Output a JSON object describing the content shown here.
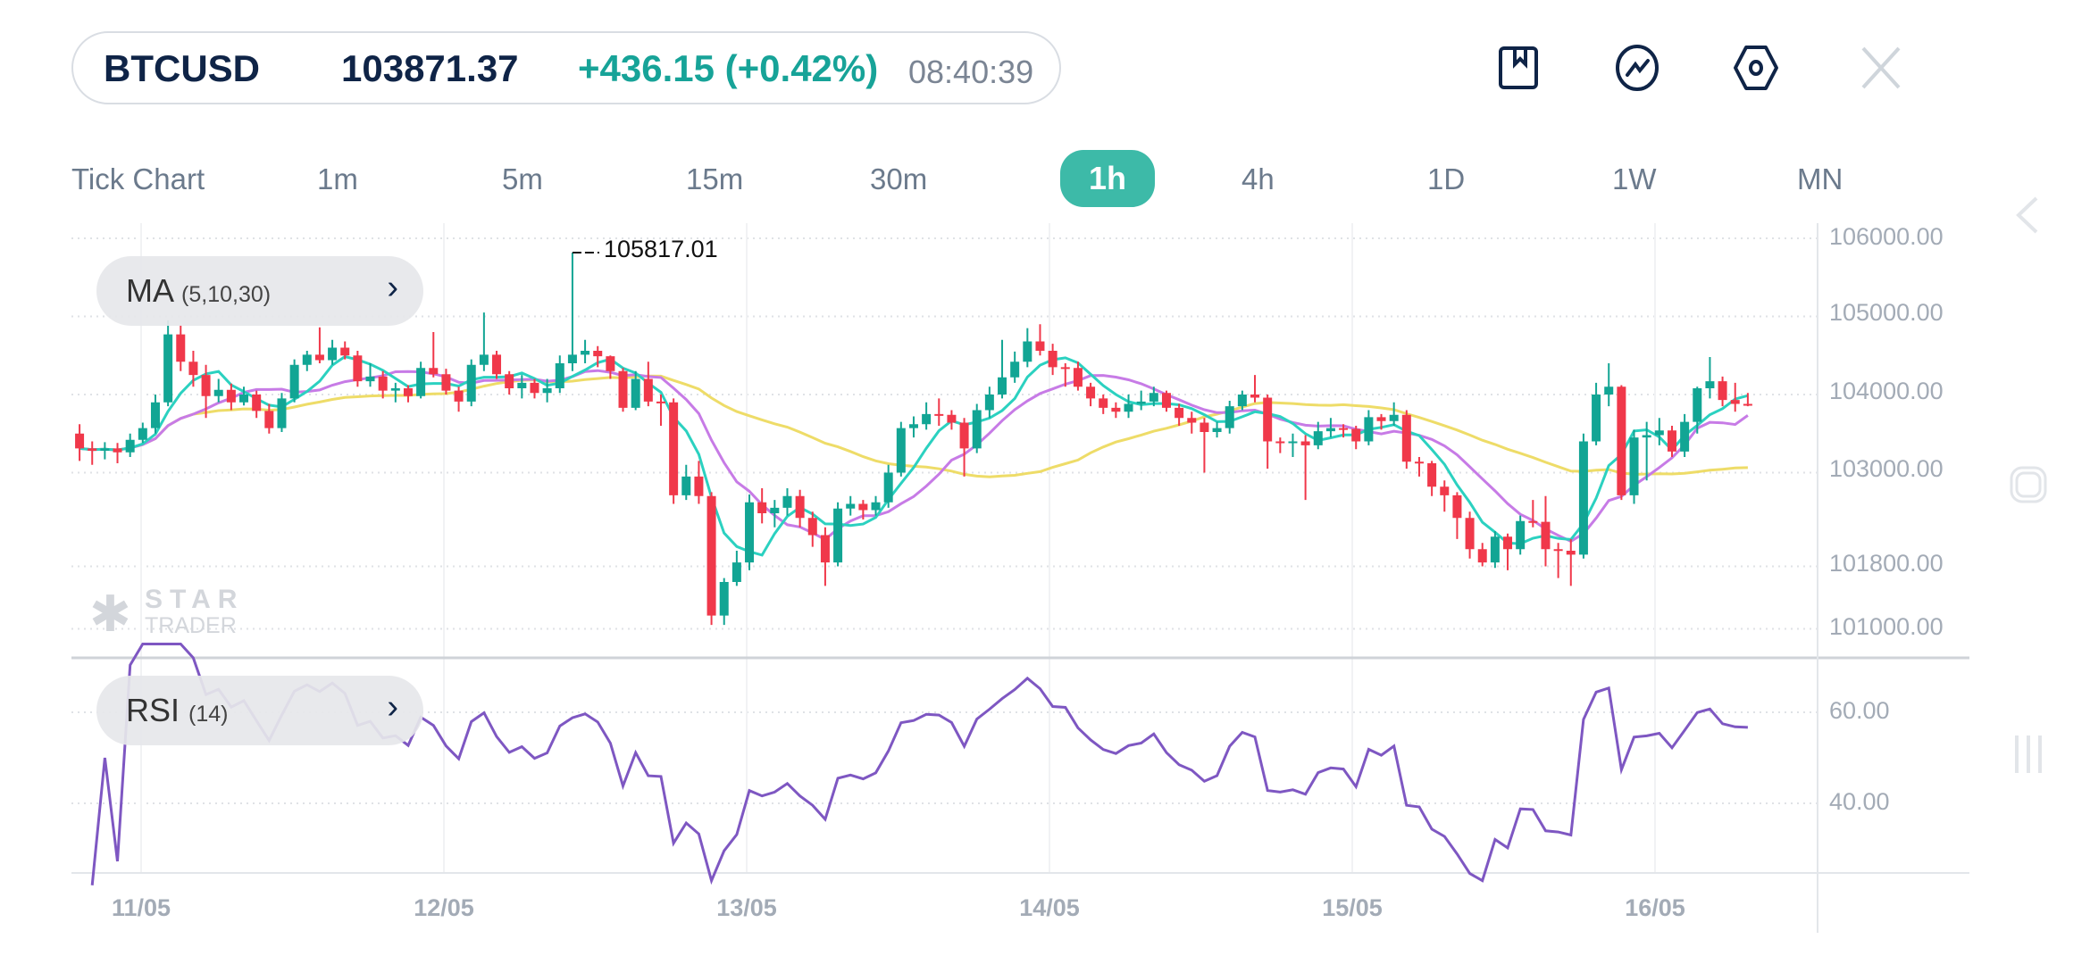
{
  "header": {
    "symbol": "BTCUSD",
    "price": "103871.37",
    "change": "+436.15 (+0.42%)",
    "time": "08:40:39",
    "icons": [
      "bookmark-icon",
      "indicator-chart-icon",
      "settings-hexagon-icon",
      "close-icon"
    ]
  },
  "timeframes": [
    {
      "label": "Tick Chart"
    },
    {
      "label": "1m"
    },
    {
      "label": "5m"
    },
    {
      "label": "15m"
    },
    {
      "label": "30m"
    },
    {
      "label": "1h",
      "active": true
    },
    {
      "label": "4h"
    },
    {
      "label": "1D"
    },
    {
      "label": "1W"
    },
    {
      "label": "MN"
    }
  ],
  "indicators": {
    "ma": {
      "name": "MA",
      "params": "(5,10,30)",
      "periods": [
        5,
        10,
        30
      ]
    },
    "rsi": {
      "name": "RSI",
      "params": "(14)",
      "period": 14
    }
  },
  "watermark": {
    "line1": "STAR",
    "line2": "TRADER"
  },
  "colors": {
    "up": "#12a594",
    "down": "#f0384a",
    "ma5": "#2bd1c0",
    "ma10": "#c77be6",
    "ma30": "#eedc68",
    "rsi": "#7e57c2",
    "accent": "#3dbaa8"
  },
  "chart_data": [
    {
      "type": "candlestick",
      "title": "",
      "price_axis_labels": [
        "106000.00",
        "105000.00",
        "104000.00",
        "103000.00",
        "101800.00",
        "101000.00"
      ],
      "price_axis_values": [
        106000,
        105000,
        104000,
        103000,
        101800,
        101000
      ],
      "ylim": [
        100900,
        106100
      ],
      "x_tick_labels": [
        "11/05",
        "12/05",
        "13/05",
        "14/05",
        "15/05",
        "16/05"
      ],
      "peak_label": "105817.01",
      "grid": true,
      "candles_ohlc": [
        [
          103500,
          103620,
          103150,
          103310
        ],
        [
          103310,
          103400,
          103100,
          103280
        ],
        [
          103280,
          103390,
          103170,
          103310
        ],
        [
          103310,
          103380,
          103120,
          103260
        ],
        [
          103260,
          103500,
          103200,
          103420
        ],
        [
          103420,
          103640,
          103380,
          103570
        ],
        [
          103570,
          104000,
          103500,
          103900
        ],
        [
          103900,
          104950,
          103850,
          104770
        ],
        [
          104770,
          104890,
          104300,
          104420
        ],
        [
          104420,
          104560,
          104100,
          104250
        ],
        [
          104250,
          104380,
          103700,
          103980
        ],
        [
          103980,
          104200,
          103900,
          104060
        ],
        [
          104060,
          104140,
          103800,
          103900
        ],
        [
          103900,
          104100,
          103860,
          104000
        ],
        [
          104000,
          104050,
          103700,
          103790
        ],
        [
          103790,
          103880,
          103500,
          103570
        ],
        [
          103570,
          104020,
          103520,
          103950
        ],
        [
          103950,
          104450,
          103900,
          104380
        ],
        [
          104380,
          104560,
          104300,
          104510
        ],
        [
          104510,
          104860,
          104400,
          104440
        ],
        [
          104440,
          104700,
          104380,
          104600
        ],
        [
          104600,
          104680,
          104450,
          104500
        ],
        [
          104500,
          104560,
          104100,
          104170
        ],
        [
          104170,
          104400,
          104100,
          104230
        ],
        [
          104230,
          104300,
          103950,
          104050
        ],
        [
          104050,
          104150,
          103900,
          104080
        ],
        [
          104080,
          104120,
          103900,
          103980
        ],
        [
          103980,
          104420,
          103950,
          104340
        ],
        [
          104340,
          104800,
          104220,
          104260
        ],
        [
          104260,
          104330,
          104000,
          104050
        ],
        [
          104050,
          104100,
          103780,
          103910
        ],
        [
          103910,
          104450,
          103850,
          104380
        ],
        [
          104380,
          105050,
          104300,
          104510
        ],
        [
          104510,
          104560,
          104200,
          104260
        ],
        [
          104260,
          104300,
          104000,
          104080
        ],
        [
          104080,
          104250,
          103950,
          104150
        ],
        [
          104150,
          104200,
          103950,
          104020
        ],
        [
          104020,
          104200,
          103900,
          104080
        ],
        [
          104080,
          104500,
          104020,
          104400
        ],
        [
          104400,
          105817.01,
          104300,
          104510
        ],
        [
          104510,
          104700,
          104400,
          104560
        ],
        [
          104560,
          104620,
          104350,
          104490
        ],
        [
          104490,
          104500,
          104200,
          104300
        ],
        [
          104300,
          104340,
          103780,
          103830
        ],
        [
          103830,
          104300,
          103800,
          104200
        ],
        [
          104200,
          104420,
          103850,
          103910
        ],
        [
          103910,
          104000,
          103600,
          103900
        ],
        [
          103900,
          103950,
          102600,
          102710
        ],
        [
          102710,
          103100,
          102650,
          102950
        ],
        [
          102950,
          103150,
          102600,
          102700
        ],
        [
          102700,
          102750,
          101050,
          101170
        ],
        [
          101170,
          101650,
          101050,
          101600
        ],
        [
          101600,
          102000,
          101550,
          101850
        ],
        [
          101850,
          102720,
          101750,
          102620
        ],
        [
          102620,
          102800,
          102350,
          102480
        ],
        [
          102480,
          102650,
          102300,
          102550
        ],
        [
          102550,
          102800,
          102450,
          102700
        ],
        [
          102700,
          102780,
          102300,
          102420
        ],
        [
          102420,
          102500,
          102050,
          102200
        ],
        [
          102200,
          102300,
          101550,
          101850
        ],
        [
          101850,
          102620,
          101800,
          102540
        ],
        [
          102540,
          102700,
          102450,
          102600
        ],
        [
          102600,
          102650,
          102400,
          102520
        ],
        [
          102520,
          102700,
          102450,
          102620
        ],
        [
          102620,
          103100,
          102550,
          103000
        ],
        [
          103000,
          103650,
          102950,
          103570
        ],
        [
          103570,
          103720,
          103450,
          103620
        ],
        [
          103620,
          103900,
          103550,
          103750
        ],
        [
          103750,
          103950,
          103600,
          103740
        ],
        [
          103740,
          103800,
          103550,
          103640
        ],
        [
          103640,
          103700,
          102950,
          103310
        ],
        [
          103310,
          103880,
          103250,
          103800
        ],
        [
          103800,
          104100,
          103700,
          104000
        ],
        [
          104000,
          104700,
          103950,
          104220
        ],
        [
          104220,
          104550,
          104150,
          104420
        ],
        [
          104420,
          104850,
          104350,
          104680
        ],
        [
          104680,
          104900,
          104500,
          104560
        ],
        [
          104560,
          104650,
          104250,
          104350
        ],
        [
          104350,
          104400,
          104100,
          104340
        ],
        [
          104340,
          104420,
          104050,
          104100
        ],
        [
          104100,
          104150,
          103850,
          103950
        ],
        [
          103950,
          104000,
          103750,
          103830
        ],
        [
          103830,
          103900,
          103700,
          103780
        ],
        [
          103780,
          104000,
          103700,
          103880
        ],
        [
          103880,
          104050,
          103800,
          103910
        ],
        [
          103910,
          104100,
          103850,
          104020
        ],
        [
          104020,
          104050,
          103780,
          103830
        ],
        [
          103830,
          103880,
          103600,
          103700
        ],
        [
          103700,
          103780,
          103500,
          103640
        ],
        [
          103640,
          103700,
          103000,
          103520
        ],
        [
          103520,
          103650,
          103450,
          103570
        ],
        [
          103570,
          103920,
          103500,
          103850
        ],
        [
          103850,
          104050,
          103800,
          104000
        ],
        [
          104000,
          104250,
          103900,
          103960
        ],
        [
          103960,
          104000,
          103050,
          103400
        ],
        [
          103400,
          103450,
          103250,
          103380
        ],
        [
          103380,
          103500,
          103200,
          103400
        ],
        [
          103400,
          103480,
          102650,
          103350
        ],
        [
          103350,
          103650,
          103300,
          103530
        ],
        [
          103530,
          103700,
          103450,
          103570
        ],
        [
          103570,
          103620,
          103450,
          103560
        ],
        [
          103560,
          103600,
          103300,
          103400
        ],
        [
          103400,
          103800,
          103350,
          103710
        ],
        [
          103710,
          103750,
          103550,
          103660
        ],
        [
          103660,
          103900,
          103600,
          103740
        ],
        [
          103740,
          103800,
          103050,
          103140
        ],
        [
          103140,
          103200,
          102950,
          103120
        ],
        [
          103120,
          103150,
          102700,
          102820
        ],
        [
          102820,
          102900,
          102500,
          102710
        ],
        [
          102710,
          102750,
          102150,
          102420
        ],
        [
          102420,
          102500,
          101900,
          102020
        ],
        [
          102020,
          102100,
          101800,
          101850
        ],
        [
          101850,
          102250,
          101780,
          102180
        ],
        [
          102180,
          102220,
          101750,
          102020
        ],
        [
          102020,
          102450,
          101950,
          102380
        ],
        [
          102380,
          102650,
          102300,
          102370
        ],
        [
          102370,
          102700,
          101800,
          102020
        ],
        [
          102020,
          102100,
          101650,
          102000
        ],
        [
          102000,
          102150,
          101550,
          101950
        ],
        [
          101950,
          103500,
          101900,
          103400
        ],
        [
          103400,
          104150,
          103350,
          104000
        ],
        [
          104000,
          104400,
          103850,
          104100
        ],
        [
          104100,
          104120,
          102650,
          102710
        ],
        [
          102710,
          103550,
          102600,
          103450
        ],
        [
          103450,
          103650,
          102900,
          103480
        ],
        [
          103480,
          103700,
          103350,
          103540
        ],
        [
          103540,
          103600,
          103200,
          103270
        ],
        [
          103270,
          103750,
          103200,
          103650
        ],
        [
          103650,
          104100,
          103500,
          104080
        ],
        [
          104080,
          104480,
          103950,
          104170
        ],
        [
          104170,
          104230,
          103850,
          103930
        ],
        [
          103930,
          104150,
          103780,
          103880
        ],
        [
          103880,
          104020,
          103850,
          103871.37
        ]
      ]
    },
    {
      "type": "line",
      "title": "",
      "series": [
        {
          "name": "RSI (14)",
          "derived_from": "candles close"
        }
      ],
      "y_axis_labels": [
        "60.00",
        "40.00"
      ],
      "y_axis_values": [
        60,
        40
      ],
      "ylim": [
        25,
        75
      ],
      "grid": true
    }
  ]
}
